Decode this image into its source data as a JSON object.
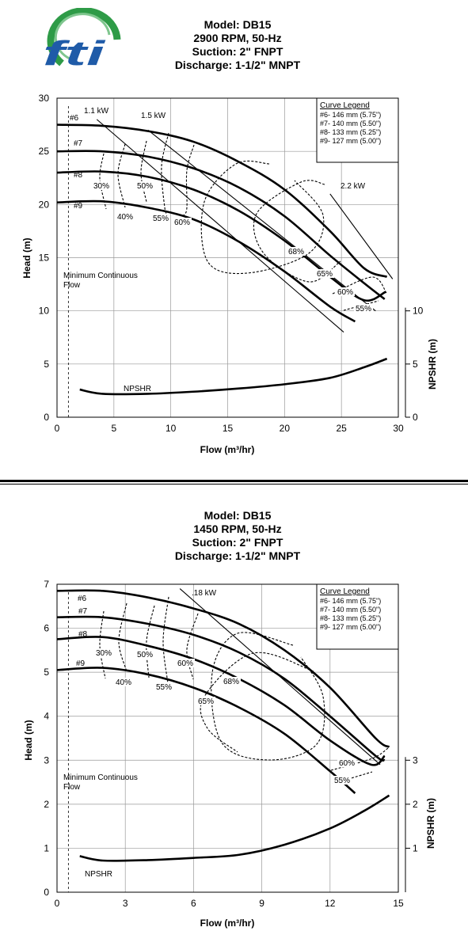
{
  "logo": {
    "text": "fti",
    "colors": {
      "green": "#2e9b47",
      "blue": "#1f5ba8"
    }
  },
  "chart_data": [
    {
      "type": "line",
      "title": [
        "Model: DB15",
        "2900 RPM, 50-Hz",
        "Suction: 2\" FNPT",
        "Discharge: 1-1/2\" MNPT"
      ],
      "xlabel": "Flow (m³/hr)",
      "ylabel": "Head (m)",
      "y2label": "NPSHR (m)",
      "xlim": [
        0,
        30
      ],
      "ylim": [
        0,
        30
      ],
      "xticks": [
        "0",
        "5",
        "10",
        "15",
        "20",
        "25",
        "30"
      ],
      "yticks": [
        "0",
        "5",
        "10",
        "15",
        "20",
        "25",
        "30"
      ],
      "y2ticks": [
        "0",
        "5",
        "10"
      ],
      "grid": true,
      "legend": {
        "title": "Curve Legend",
        "entries": [
          "#6- 146 mm (5.75\")",
          "#7- 140 mm (5.50\")",
          "#8- 133 mm (5.25\")",
          "#9- 127 mm (5.00\")"
        ],
        "placement": "top-right"
      },
      "series": [
        {
          "name": "#6",
          "x": [
            0,
            4,
            8,
            12,
            16,
            20,
            24,
            27,
            29
          ],
          "y": [
            27.5,
            27.4,
            26.9,
            25.9,
            24.0,
            21.4,
            17.5,
            14.0,
            13.2
          ]
        },
        {
          "name": "#7",
          "x": [
            0,
            4,
            8,
            12,
            16,
            20,
            24,
            27,
            28.8
          ],
          "y": [
            25.0,
            25.0,
            24.5,
            23.4,
            21.6,
            18.9,
            15.2,
            12.6,
            11.1
          ]
        },
        {
          "name": "#8",
          "x": [
            0,
            4,
            8,
            12,
            16,
            20,
            24,
            27,
            28.9
          ],
          "y": [
            23.0,
            23.1,
            22.6,
            21.4,
            19.4,
            16.6,
            13.2,
            11.0,
            11.8
          ]
        },
        {
          "name": "#9",
          "x": [
            0,
            4,
            8,
            12,
            16,
            20,
            24,
            26.2
          ],
          "y": [
            20.2,
            20.3,
            19.7,
            18.6,
            16.5,
            13.7,
            10.4,
            9.0
          ]
        }
      ],
      "npshr": {
        "name": "NPSHR",
        "x": [
          2,
          4,
          8,
          12,
          16,
          20,
          24,
          27,
          29
        ],
        "y": [
          2.6,
          2.2,
          2.2,
          2.4,
          2.7,
          3.1,
          3.7,
          4.7,
          5.5
        ]
      },
      "power_lines": [
        {
          "label": "1.1 kW",
          "x": [
            3.5,
            25.2
          ],
          "y": [
            28.0,
            8.0
          ]
        },
        {
          "label": "1.5 kW",
          "x": [
            8.0,
            28.0
          ],
          "y": [
            27.0,
            10.0
          ]
        },
        {
          "label": "2.2 kW",
          "x": [
            24.0,
            29.5
          ],
          "y": [
            21.0,
            13.0
          ]
        }
      ],
      "efficiency_labels": [
        "30%",
        "40%",
        "50%",
        "55%",
        "60%",
        "68%",
        "65%",
        "60%",
        "55%"
      ],
      "curve_labels": [
        "#6",
        "#7",
        "#8",
        "#9"
      ],
      "annotations": {
        "min_flow": "Minimum Continuous Flow",
        "min_flow_x": 1.0,
        "npshr_label": "NPSHR"
      }
    },
    {
      "type": "line",
      "title": [
        "Model: DB15",
        "1450 RPM, 50-Hz",
        "Suction: 2\" FNPT",
        "Discharge: 1-1/2\" MNPT"
      ],
      "xlabel": "Flow (m³/hr)",
      "ylabel": "Head (m)",
      "y2label": "NPSHR (m)",
      "xlim": [
        0,
        15
      ],
      "ylim": [
        0,
        7
      ],
      "xticks": [
        "0",
        "3",
        "6",
        "9",
        "12",
        "15"
      ],
      "yticks": [
        "0",
        "1",
        "2",
        "3",
        "4",
        "5",
        "6",
        "7"
      ],
      "y2ticks": [
        "1",
        "2",
        "3"
      ],
      "grid": true,
      "legend": {
        "title": "Curve Legend",
        "entries": [
          "#6- 146 mm (5.75\")",
          "#7- 140 mm (5.50\")",
          "#8- 133 mm (5.25\")",
          "#9- 127 mm (5.00\")"
        ],
        "placement": "top-right"
      },
      "series": [
        {
          "name": "#6",
          "x": [
            0,
            2,
            4,
            6,
            8,
            10,
            12,
            14,
            14.6
          ],
          "y": [
            6.85,
            6.85,
            6.7,
            6.45,
            6.1,
            5.5,
            4.65,
            3.5,
            3.3
          ]
        },
        {
          "name": "#7",
          "x": [
            0,
            2,
            4,
            6,
            8,
            10,
            12,
            14,
            14.4
          ],
          "y": [
            6.25,
            6.25,
            6.1,
            5.85,
            5.45,
            4.85,
            4.0,
            3.1,
            3.0
          ]
        },
        {
          "name": "#8",
          "x": [
            0,
            2,
            4,
            6,
            8,
            10,
            12,
            13.8,
            14.4
          ],
          "y": [
            5.75,
            5.8,
            5.6,
            5.3,
            4.85,
            4.25,
            3.45,
            2.9,
            3.1
          ]
        },
        {
          "name": "#9",
          "x": [
            0,
            2,
            4,
            6,
            8,
            10,
            12,
            13.1
          ],
          "y": [
            5.05,
            5.1,
            4.95,
            4.65,
            4.2,
            3.6,
            2.75,
            2.25
          ]
        }
      ],
      "npshr": {
        "name": "NPSHR",
        "x": [
          1,
          2,
          4,
          6,
          8,
          10,
          12,
          13.5,
          14.6
        ],
        "y": [
          0.82,
          0.72,
          0.73,
          0.78,
          0.85,
          1.08,
          1.45,
          1.85,
          2.2
        ]
      },
      "power_lines": [
        {
          "label": ".18 kW",
          "x": [
            5.4,
            14.2
          ],
          "y": [
            6.9,
            2.9
          ]
        }
      ],
      "efficiency_labels": [
        "30%",
        "40%",
        "50%",
        "55%",
        "60%",
        "68%",
        "65%",
        "60%",
        "55%"
      ],
      "curve_labels": [
        "#6",
        "#7",
        "#8",
        "#9"
      ],
      "annotations": {
        "min_flow": "Minimum Continuous Flow",
        "min_flow_x": 0.5,
        "npshr_label": "NPSHR"
      }
    }
  ]
}
